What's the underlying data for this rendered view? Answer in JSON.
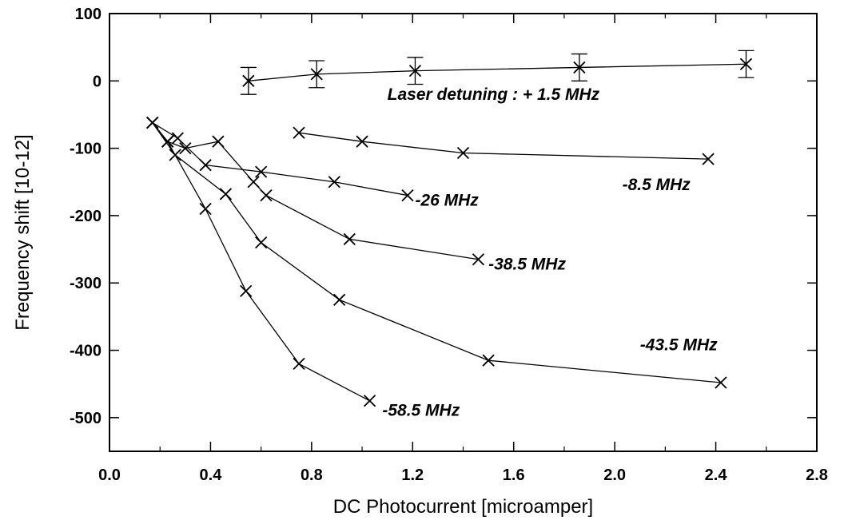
{
  "chart_data": {
    "type": "line",
    "title": "",
    "xlabel": "DC Photocurrent [microamper]",
    "ylabel": "Frequency shift [10-12]",
    "xlim": [
      0.0,
      2.8
    ],
    "ylim": [
      -550,
      100
    ],
    "xticks": [
      "0.0",
      "0.4",
      "0.8",
      "1.2",
      "1.6",
      "2.0",
      "2.4",
      "2.8"
    ],
    "yticks": [
      "100",
      "0",
      "-100",
      "-200",
      "-300",
      "-400",
      "-500"
    ],
    "xtick_values": [
      0.0,
      0.4,
      0.8,
      1.2,
      1.6,
      2.0,
      2.4,
      2.8
    ],
    "ytick_values": [
      100,
      0,
      -100,
      -200,
      -300,
      -400,
      -500
    ],
    "grid": false,
    "marker": "x",
    "series": [
      {
        "name": "Laser detuning : + 1.5 MHz",
        "label_anchor": [
          1.1,
          -28
        ],
        "x": [
          0.55,
          0.82,
          1.21,
          1.86,
          2.52
        ],
        "y": [
          0,
          10,
          15,
          20,
          25
        ],
        "yerr": [
          20,
          20,
          20,
          20,
          20
        ]
      },
      {
        "name": "-8.5 MHz",
        "label_anchor": [
          2.03,
          -162
        ],
        "x": [
          0.75,
          1.0,
          1.4,
          2.37
        ],
        "y": [
          -77,
          -90,
          -107,
          -116
        ]
      },
      {
        "name": "-26 MHz",
        "label_anchor": [
          1.21,
          -185
        ],
        "x": [
          0.17,
          0.27,
          0.38,
          0.6,
          0.89,
          1.18
        ],
        "y": [
          -62,
          -85,
          -125,
          -135,
          -150,
          -170
        ]
      },
      {
        "name": "-38.5 MHz",
        "label_anchor": [
          1.5,
          -280
        ],
        "x": [
          0.17,
          0.23,
          0.3,
          0.43,
          0.57,
          0.62,
          0.95,
          1.46
        ],
        "y": [
          -62,
          -90,
          -100,
          -90,
          -150,
          -170,
          -235,
          -265
        ]
      },
      {
        "name": "-43.5 MHz",
        "label_anchor": [
          2.1,
          -400
        ],
        "x": [
          0.17,
          0.26,
          0.46,
          0.6,
          0.91,
          1.5,
          2.42
        ],
        "y": [
          -62,
          -110,
          -168,
          -240,
          -325,
          -415,
          -448
        ]
      },
      {
        "name": "-58.5 MHz",
        "label_anchor": [
          1.08,
          -497
        ],
        "x": [
          0.17,
          0.23,
          0.38,
          0.54,
          0.75,
          1.03
        ],
        "y": [
          -62,
          -90,
          -190,
          -312,
          -420,
          -475
        ]
      }
    ]
  }
}
